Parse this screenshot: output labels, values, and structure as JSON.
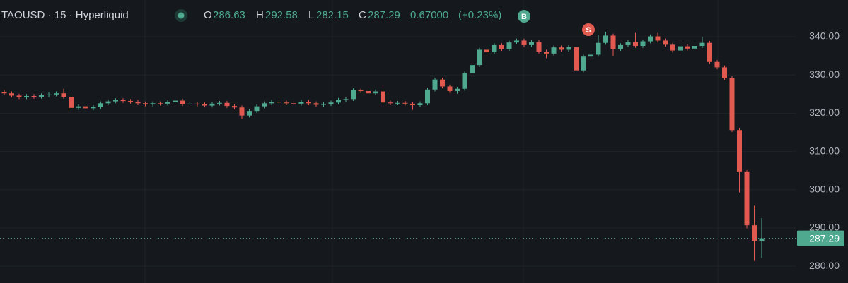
{
  "chart_data": {
    "type": "candlestick",
    "title": "TAOUSD · 15 · Hyperliquid",
    "legend": {
      "open_label": "O",
      "open": 286.63,
      "high_label": "H",
      "high": 292.58,
      "low_label": "L",
      "low": 282.15,
      "close_label": "C",
      "close": 287.29,
      "change": {
        "value": 0.67,
        "label": "0.67000"
      },
      "change_percent": {
        "value": 0.23,
        "label": "(+0.23%)"
      }
    },
    "buy_marker": "B",
    "sell_marker": "S",
    "last_price": 287.29,
    "up_color": "#4ea98f",
    "down_color": "#e2594f",
    "grid": true,
    "ylim": [
      275.6,
      349.6
    ],
    "yticks": [
      {
        "value": 280,
        "label": "280.00"
      },
      {
        "value": 290,
        "label": "290.00"
      },
      {
        "value": 300,
        "label": "300.00"
      },
      {
        "value": 310,
        "label": "310.00"
      },
      {
        "value": 320,
        "label": "320.00"
      },
      {
        "value": 330,
        "label": "330.00"
      },
      {
        "value": 340,
        "label": "340.00"
      }
    ],
    "ohlc": {
      "open": [
        325.6,
        325.2,
        324.6,
        324.2,
        324.5,
        324.3,
        324.7,
        324.9,
        325.2,
        324.3,
        321.4,
        321.8,
        321.3,
        321.6,
        322.6,
        323.1,
        323.4,
        323.2,
        323.0,
        322.6,
        322.3,
        322.6,
        322.5,
        322.9,
        323.3,
        322.4,
        322.5,
        322.3,
        322.0,
        322.5,
        322.7,
        321.9,
        321.5,
        319.4,
        320.6,
        321.8,
        322.6,
        323.0,
        322.8,
        322.6,
        322.5,
        323.0,
        322.6,
        322.2,
        322.4,
        322.8,
        323.5,
        323.7,
        326.0,
        325.8,
        325.2,
        325.7,
        322.8,
        322.6,
        322.7,
        322.5,
        322.1,
        322.6,
        326.2,
        328.8,
        327.0,
        325.8,
        326.4,
        330.4,
        332.6,
        336.6,
        336.0,
        337.8,
        336.8,
        338.5,
        339.0,
        337.8,
        338.6,
        336.1,
        335.6,
        337.2,
        336.6,
        337.3,
        331.2,
        334.8,
        335.3,
        338.4,
        340.3,
        336.8,
        337.8,
        338.6,
        337.6,
        338.8,
        340.1,
        339.0,
        337.9,
        336.4,
        337.5,
        336.9,
        337.6,
        338.4,
        333.4,
        332.0,
        329.2,
        315.6,
        304.6,
        290.7,
        286.63
      ],
      "high": [
        326.1,
        325.7,
        325.1,
        325.0,
        325.0,
        325.2,
        325.4,
        325.7,
        326.4,
        324.8,
        322.3,
        322.6,
        322.1,
        323.1,
        323.6,
        323.9,
        323.9,
        323.7,
        323.5,
        323.1,
        323.1,
        323.1,
        323.4,
        323.8,
        323.8,
        323.0,
        323.0,
        322.8,
        323.0,
        323.2,
        323.2,
        322.4,
        322.0,
        321.1,
        322.3,
        323.1,
        323.5,
        323.5,
        323.3,
        323.1,
        323.5,
        323.5,
        323.1,
        322.9,
        323.3,
        324.0,
        324.2,
        326.5,
        326.4,
        326.3,
        326.2,
        326.2,
        323.3,
        323.2,
        323.2,
        323.0,
        323.1,
        326.7,
        329.3,
        329.3,
        327.5,
        326.9,
        330.9,
        333.1,
        337.1,
        337.1,
        338.3,
        338.3,
        339.0,
        339.5,
        339.5,
        339.1,
        339.1,
        336.6,
        337.7,
        337.7,
        337.8,
        337.8,
        335.3,
        335.8,
        340.5,
        341.3,
        340.8,
        338.3,
        339.1,
        341.0,
        339.3,
        340.6,
        341.0,
        339.5,
        338.4,
        338.0,
        338.0,
        338.1,
        340.0,
        338.9,
        333.9,
        332.5,
        329.7,
        316.1,
        305.1,
        295.8,
        292.58
      ],
      "low": [
        324.7,
        324.1,
        323.7,
        323.7,
        323.8,
        323.8,
        324.2,
        324.4,
        323.8,
        320.5,
        320.9,
        320.4,
        320.8,
        321.1,
        322.1,
        322.6,
        322.7,
        322.5,
        322.1,
        321.8,
        321.8,
        322.0,
        322.0,
        322.4,
        321.9,
        321.9,
        321.8,
        321.5,
        321.5,
        322.0,
        321.4,
        321.0,
        318.6,
        318.9,
        320.1,
        321.3,
        322.1,
        322.3,
        322.1,
        322.0,
        322.0,
        322.1,
        321.7,
        321.7,
        321.9,
        322.3,
        323.0,
        323.2,
        325.3,
        324.7,
        324.7,
        322.3,
        322.1,
        322.1,
        322.0,
        320.9,
        321.6,
        322.1,
        325.7,
        326.5,
        325.3,
        325.1,
        325.9,
        329.9,
        332.1,
        335.5,
        335.5,
        336.3,
        336.3,
        338.0,
        337.3,
        337.3,
        335.6,
        334.4,
        335.1,
        336.1,
        336.1,
        330.7,
        330.7,
        334.3,
        334.8,
        337.9,
        334.9,
        336.3,
        337.3,
        337.1,
        337.1,
        338.3,
        338.5,
        337.4,
        335.9,
        335.9,
        336.4,
        336.4,
        337.1,
        332.9,
        331.5,
        328.7,
        315.1,
        299.3,
        289.9,
        281.4,
        282.15
      ],
      "close": [
        325.2,
        324.6,
        324.2,
        324.5,
        324.3,
        324.7,
        324.9,
        325.2,
        324.3,
        321.4,
        321.8,
        321.3,
        321.6,
        322.6,
        323.1,
        323.4,
        323.2,
        323.0,
        322.6,
        322.3,
        322.6,
        322.5,
        322.9,
        323.3,
        322.4,
        322.5,
        322.3,
        322.0,
        322.5,
        322.7,
        321.9,
        321.5,
        319.4,
        320.6,
        321.8,
        322.6,
        323.0,
        322.8,
        322.6,
        322.5,
        323.0,
        322.6,
        322.2,
        322.4,
        322.8,
        323.5,
        323.7,
        326.0,
        325.8,
        325.2,
        325.7,
        322.8,
        322.6,
        322.7,
        322.5,
        322.1,
        322.6,
        326.2,
        328.8,
        327.0,
        325.8,
        326.4,
        330.4,
        332.6,
        336.6,
        336.0,
        337.8,
        336.8,
        338.5,
        339.0,
        337.8,
        338.6,
        336.1,
        335.6,
        337.2,
        336.6,
        337.3,
        331.2,
        334.8,
        335.3,
        338.4,
        340.3,
        336.8,
        337.8,
        338.6,
        337.6,
        338.8,
        340.1,
        339.0,
        337.9,
        336.4,
        337.5,
        336.9,
        337.6,
        338.4,
        333.4,
        332.0,
        329.2,
        315.6,
        304.6,
        290.7,
        286.63,
        287.29
      ]
    }
  }
}
